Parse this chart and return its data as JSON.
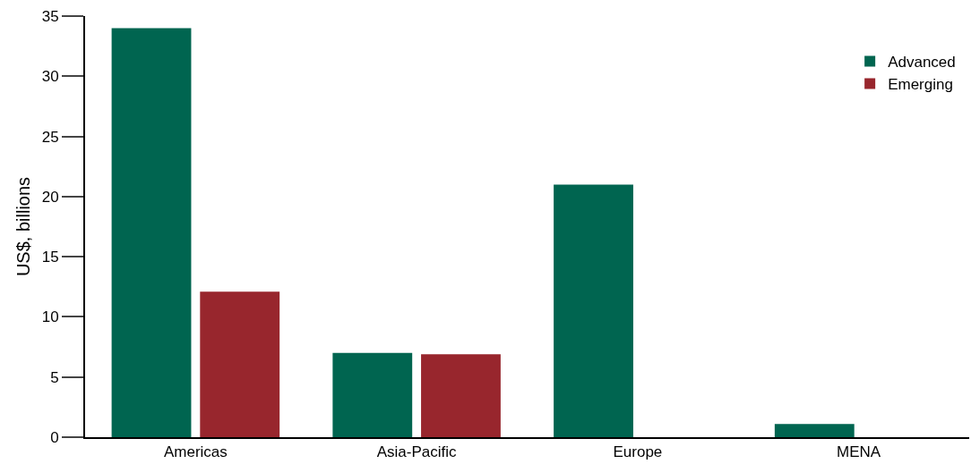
{
  "chart_data": {
    "type": "bar",
    "ylabel": "US$, billions",
    "categories": [
      "Americas",
      "Asia-Pacific",
      "Europe",
      "MENA"
    ],
    "series": [
      {
        "name": "Advanced",
        "color": "#006550",
        "values": [
          34.0,
          7.0,
          21.0,
          1.1
        ]
      },
      {
        "name": "Emerging",
        "color": "#98262d",
        "values": [
          12.1,
          6.9,
          0,
          0
        ]
      }
    ],
    "ylim": [
      0,
      35
    ],
    "yticks": [
      0,
      5,
      10,
      15,
      20,
      25,
      30,
      35
    ],
    "legend": "top right"
  }
}
